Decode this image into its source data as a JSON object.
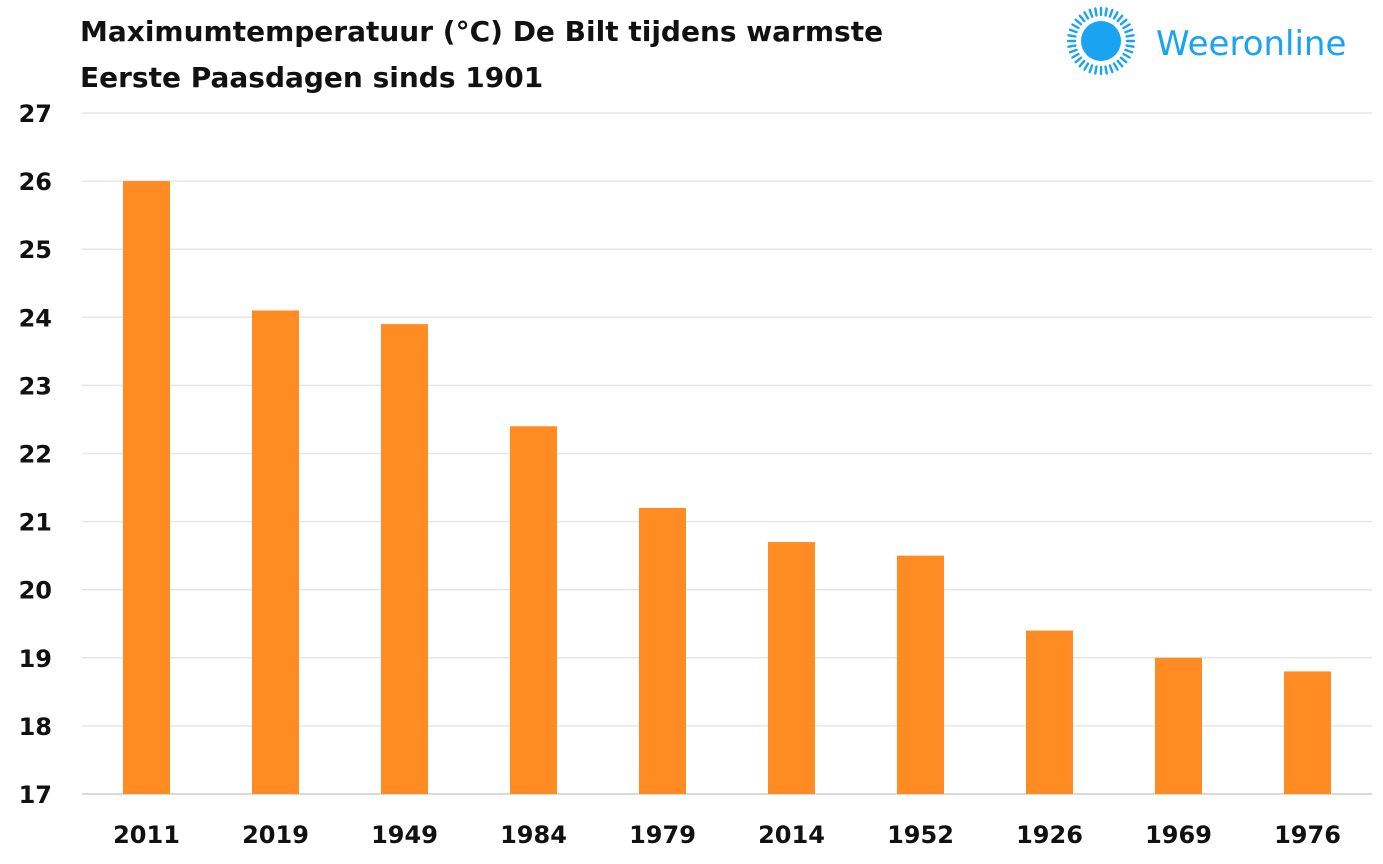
{
  "chart_data": {
    "type": "bar",
    "title_lines": [
      "Maximumtemperatuur (°C) De Bilt tijdens warmste",
      "Eerste Paasdagen sinds 1901"
    ],
    "categories": [
      "2011",
      "2019",
      "1949",
      "1984",
      "1979",
      "2014",
      "1952",
      "1926",
      "1969",
      "1976"
    ],
    "values": [
      26.0,
      24.1,
      23.9,
      22.4,
      21.2,
      20.7,
      20.5,
      19.4,
      19.0,
      18.8
    ],
    "xlabel": "",
    "ylabel": "",
    "ylim": [
      17,
      27
    ],
    "yticks": [
      17,
      18,
      19,
      20,
      21,
      22,
      23,
      24,
      25,
      26,
      27
    ],
    "grid": true,
    "legend": "none",
    "bar_color": "#FF8C23"
  },
  "brand": {
    "name": "Weeronline",
    "color": "#1AA3F0"
  },
  "colors": {
    "grid": "#E6E6E6",
    "text": "#111111"
  }
}
